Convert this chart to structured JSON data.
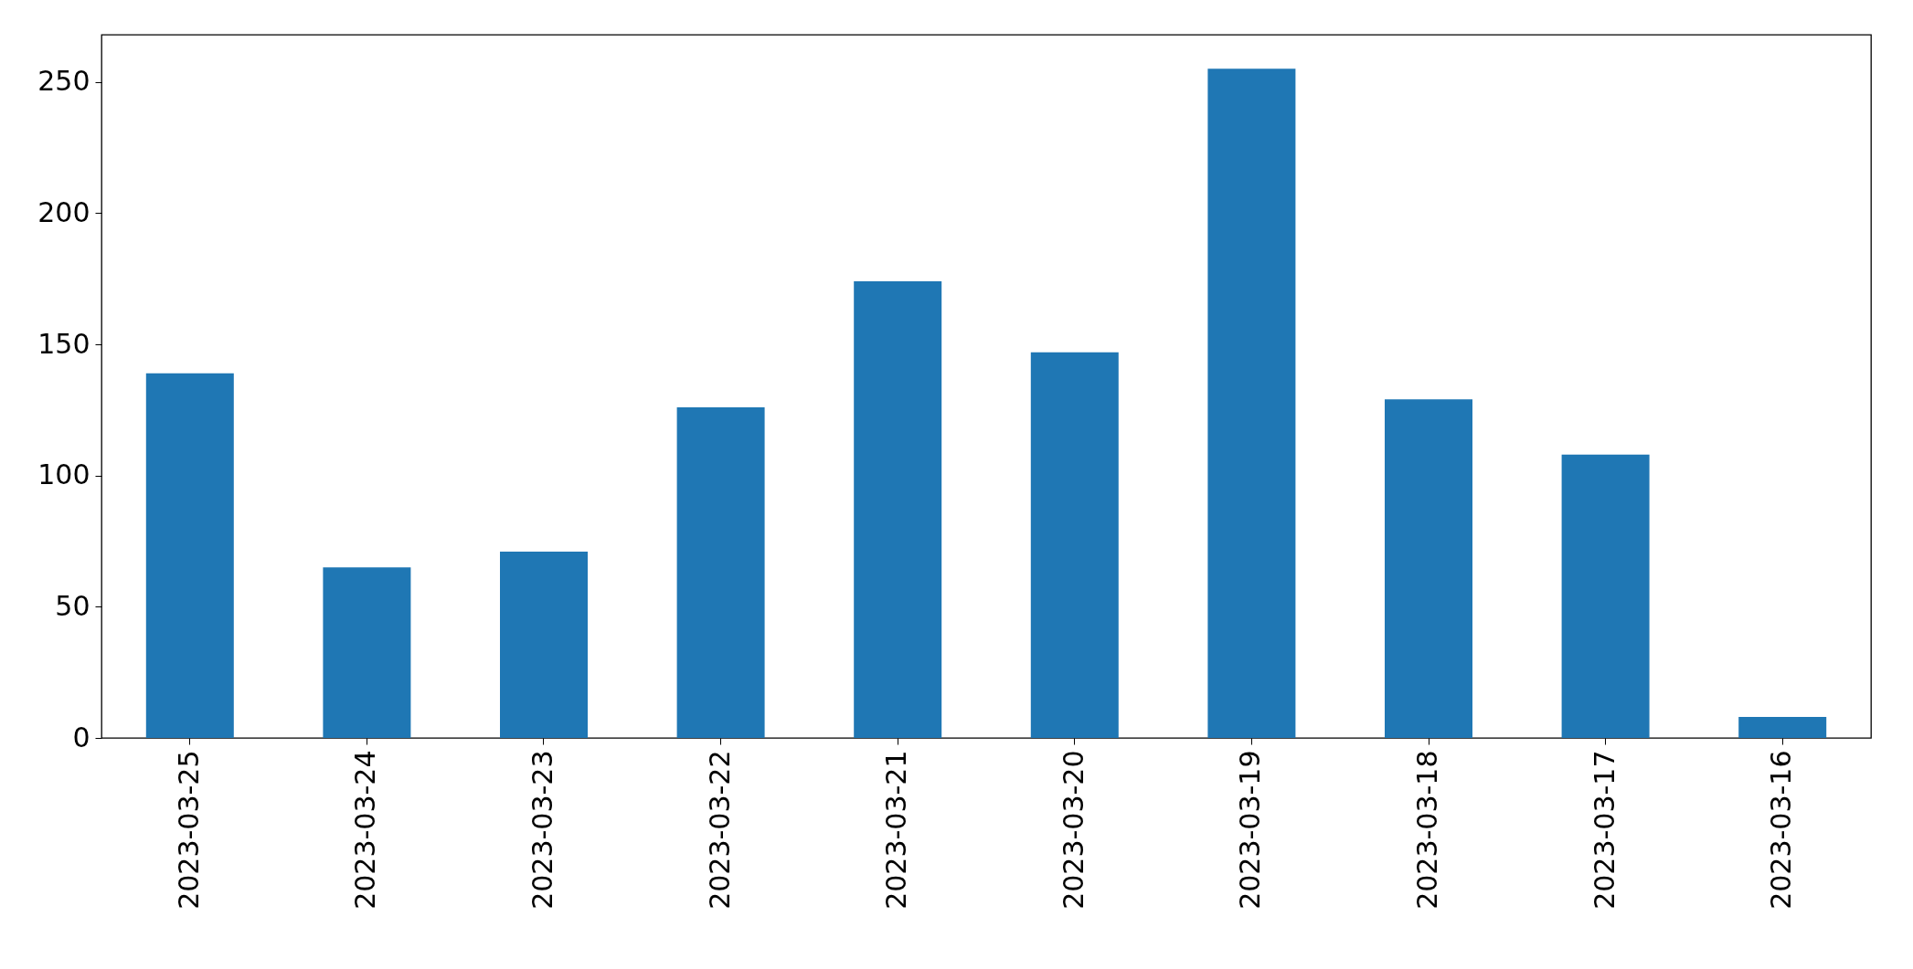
{
  "chart_data": {
    "type": "bar",
    "categories": [
      "2023-03-25",
      "2023-03-24",
      "2023-03-23",
      "2023-03-22",
      "2023-03-21",
      "2023-03-20",
      "2023-03-19",
      "2023-03-18",
      "2023-03-17",
      "2023-03-16"
    ],
    "values": [
      139,
      65,
      71,
      126,
      174,
      147,
      255,
      129,
      108,
      8
    ],
    "color": "#1f77b4",
    "ylim": [
      0,
      268
    ],
    "yticks": [
      0,
      50,
      100,
      150,
      200,
      250
    ],
    "grid": false
  }
}
